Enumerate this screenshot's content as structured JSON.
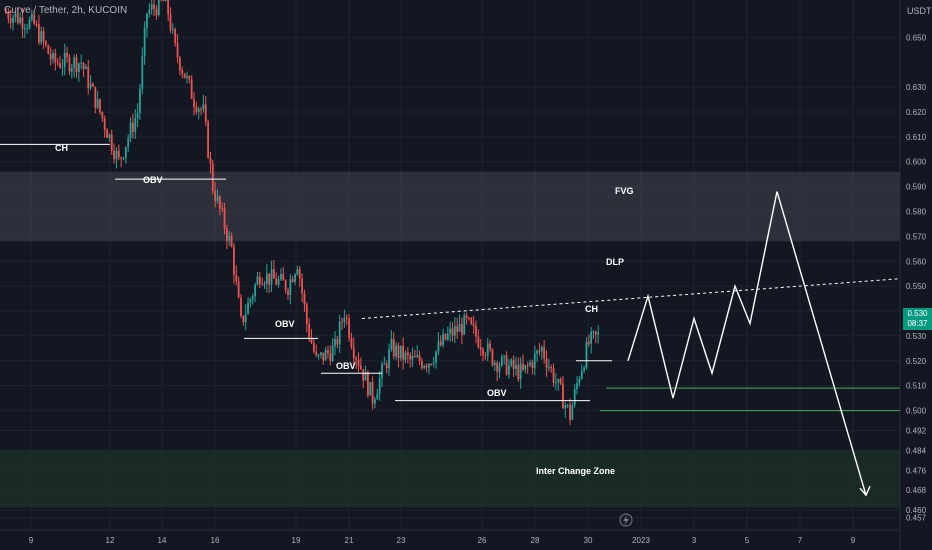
{
  "symbol_line": "Curve / Tether, 2h, KUCOIN",
  "price_unit": "USDT",
  "last_price": "0.530",
  "countdown": "08:37",
  "colors": {
    "background": "#131722",
    "up": "#26a69a",
    "down": "#ef5350",
    "fvg_zone": "#434651",
    "inter_zone": "#1d3327",
    "support_line": "#4caf50"
  },
  "icon": "lightning-icon",
  "chart_data": {
    "type": "candlestick",
    "title": "Curve / Tether, 2h, KUCOIN",
    "ylim": [
      0.452,
      0.665
    ],
    "y_ticks": [
      0.457,
      0.46,
      0.468,
      0.476,
      0.484,
      0.492,
      0.5,
      0.51,
      0.52,
      0.53,
      0.54,
      0.55,
      0.56,
      0.57,
      0.58,
      0.59,
      0.6,
      0.61,
      0.62,
      0.63,
      0.65
    ],
    "x_ticks": [
      "9",
      "12",
      "14",
      "16",
      "19",
      "21",
      "23",
      "26",
      "28",
      "30",
      "2023",
      "3",
      "5",
      "7",
      "9"
    ],
    "anchors": [
      {
        "d": 0,
        "p": 0.66
      },
      {
        "d": 3,
        "p": 0.655
      },
      {
        "d": 5,
        "p": 0.64
      },
      {
        "d": 8,
        "p": 0.64
      },
      {
        "d": 11,
        "p": 0.61
      },
      {
        "d": 12,
        "p": 0.6
      },
      {
        "d": 14,
        "p": 0.62
      },
      {
        "d": 15,
        "p": 0.66
      },
      {
        "d": 17,
        "p": 0.665
      },
      {
        "d": 18,
        "p": 0.645
      },
      {
        "d": 20,
        "p": 0.625
      },
      {
        "d": 21,
        "p": 0.62
      },
      {
        "d": 22,
        "p": 0.59
      },
      {
        "d": 24,
        "p": 0.565
      },
      {
        "d": 25,
        "p": 0.535
      },
      {
        "d": 27,
        "p": 0.555
      },
      {
        "d": 30,
        "p": 0.55
      },
      {
        "d": 31,
        "p": 0.56
      },
      {
        "d": 32,
        "p": 0.535
      },
      {
        "d": 33,
        "p": 0.52
      },
      {
        "d": 35,
        "p": 0.525
      },
      {
        "d": 36,
        "p": 0.54
      },
      {
        "d": 37,
        "p": 0.525
      },
      {
        "d": 39,
        "p": 0.505
      },
      {
        "d": 41,
        "p": 0.525
      },
      {
        "d": 43,
        "p": 0.52
      },
      {
        "d": 45,
        "p": 0.52
      },
      {
        "d": 47,
        "p": 0.53
      },
      {
        "d": 49,
        "p": 0.535
      },
      {
        "d": 52,
        "p": 0.52
      },
      {
        "d": 55,
        "p": 0.515
      },
      {
        "d": 57,
        "p": 0.525
      },
      {
        "d": 59,
        "p": 0.507
      },
      {
        "d": 60,
        "p": 0.498
      },
      {
        "d": 61,
        "p": 0.515
      },
      {
        "d": 62,
        "p": 0.527
      },
      {
        "d": 63,
        "p": 0.53
      }
    ],
    "zones": [
      {
        "name": "FVG",
        "from": 0.568,
        "to": 0.596
      },
      {
        "name": "Inter Change Zone",
        "from": 0.461,
        "to": 0.484
      }
    ],
    "levels": [
      {
        "label": "CH",
        "price": 0.607
      },
      {
        "label": "OBV",
        "price": 0.593
      },
      {
        "label": "OBV",
        "price": 0.529
      },
      {
        "label": "OBV",
        "price": 0.515
      },
      {
        "label": "OBV",
        "price": 0.504
      },
      {
        "label": "CH",
        "price": 0.52
      },
      {
        "label": "",
        "price": 0.509
      },
      {
        "label": "",
        "price": 0.5
      }
    ],
    "trendline": {
      "label": "DLP",
      "from": 0.537,
      "to": 0.553
    },
    "projection": [
      0.52,
      0.546,
      0.505,
      0.537,
      0.515,
      0.55,
      0.535,
      0.588,
      0.466
    ],
    "annotations": [
      "FVG",
      "DLP",
      "CH",
      "CH",
      "OBV",
      "OBV",
      "OBV",
      "OBV",
      "Inter Change Zone"
    ]
  }
}
